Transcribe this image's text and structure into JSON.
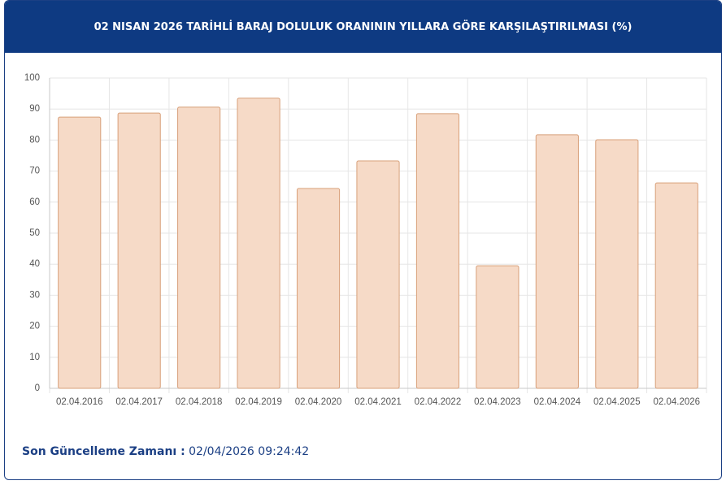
{
  "chart_data": {
    "type": "bar",
    "title": "02 NISAN 2026 TARİHLİ BARAJ DOLULUK ORANININ YILLARA GÖRE KARŞILAŞTIRILMASI (%)",
    "categories": [
      "02.04.2016",
      "02.04.2017",
      "02.04.2018",
      "02.04.2019",
      "02.04.2020",
      "02.04.2021",
      "02.04.2022",
      "02.04.2023",
      "02.04.2024",
      "02.04.2025",
      "02.04.2026"
    ],
    "values": [
      87.4,
      88.7,
      90.6,
      93.5,
      64.4,
      73.3,
      88.5,
      39.5,
      81.7,
      80.1,
      66.2
    ],
    "color": "#f6dac7",
    "edge_color": "#d8a07a",
    "ylim": [
      0,
      100
    ],
    "yticks": [
      0,
      10,
      20,
      30,
      40,
      50,
      60,
      70,
      80,
      90,
      100
    ],
    "grid": true
  },
  "footer": {
    "label": "Son Güncelleme Zamanı :",
    "value": "02/04/2026 09:24:42"
  }
}
